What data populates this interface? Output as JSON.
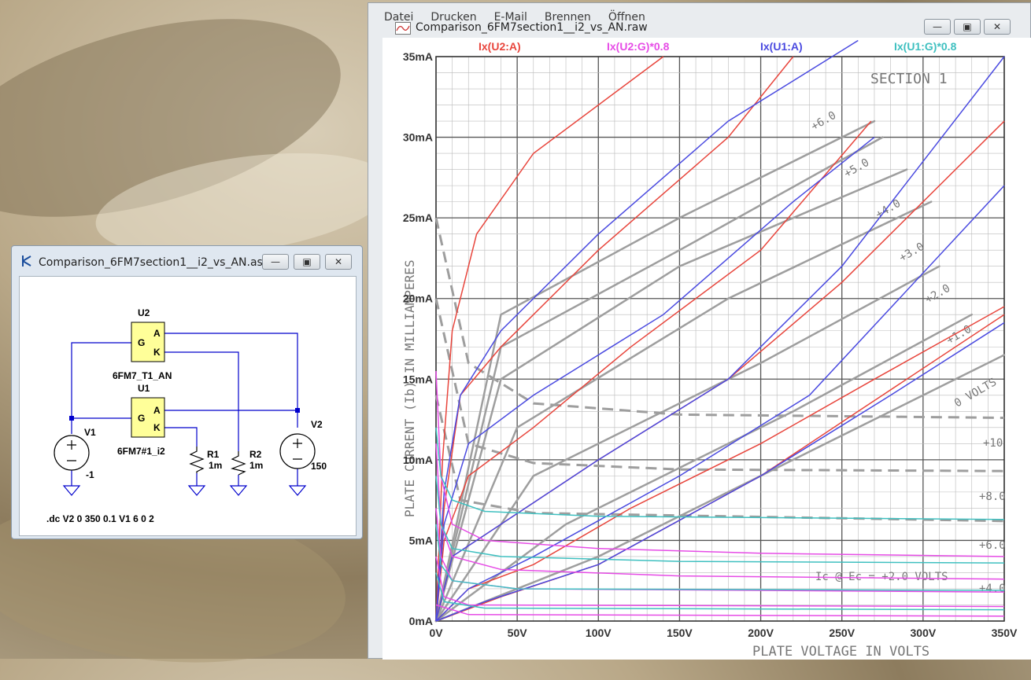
{
  "plot_window": {
    "title": "Comparison_6FM7section1__i2_vs_AN.raw",
    "menu": [
      "Datei",
      "Drucken",
      "E-Mail",
      "Brennen",
      "Öffnen"
    ]
  },
  "schematic_window": {
    "title": "Comparison_6FM7section1__i2_vs_AN.asc",
    "parts": {
      "u2_ref": "U2",
      "u2_model": "6FM7_T1_AN",
      "u1_ref": "U1",
      "u1_model": "6FM7#1_i2",
      "v1_ref": "V1",
      "v1_value": "-1",
      "v2_ref": "V2",
      "v2_value": "150",
      "r1_ref": "R1",
      "r1_value": "1m",
      "r2_ref": "R2",
      "r2_value": "1m",
      "pin_g": "G",
      "pin_a": "A",
      "pin_k": "K"
    },
    "directive": ".dc V2 0 350 0.1 V1 6 0 2"
  },
  "chart_data": {
    "type": "line",
    "x_ticks": [
      "0V",
      "50V",
      "100V",
      "150V",
      "200V",
      "250V",
      "300V",
      "350V"
    ],
    "y_ticks": [
      "0mA",
      "5mA",
      "10mA",
      "15mA",
      "20mA",
      "25mA",
      "30mA",
      "35mA"
    ],
    "xlim": [
      0,
      350
    ],
    "ylim": [
      0,
      35
    ],
    "grid": true,
    "legend": [
      "Ix(U2:A)",
      "Ix(U2:G)*0.8",
      "Ix(U1:A)",
      "Ix(U1:G)*0.8"
    ],
    "colors": {
      "u2a": "#e8453c",
      "u2g": "#e64ce6",
      "u1a": "#4a4ae0",
      "u1g": "#3fc0c0",
      "datasheet": "#9e9e9e"
    },
    "background_labels": [
      "SECTION 1",
      "PLATE CURRENT (Ib) IN MILLIAMPERES",
      "PLATE VOLTAGE IN VOLTS",
      "Ic @ Ec = +2.0 VOLTS",
      "+6.0",
      "+5.0",
      "+4.0",
      "+3.0",
      "+2.0",
      "+1.0",
      "0 VOLTS",
      "+10",
      "+8.0",
      "+6.0",
      "+4.0"
    ],
    "series": [
      {
        "name": "Ix(U2:A)",
        "color": "u2a",
        "curves": [
          [
            [
              0,
              0
            ],
            [
              4,
              10
            ],
            [
              10,
              18
            ],
            [
              25,
              24
            ],
            [
              60,
              29
            ],
            [
              140,
              35
            ]
          ],
          [
            [
              0,
              0
            ],
            [
              5,
              7
            ],
            [
              15,
              14
            ],
            [
              40,
              17
            ],
            [
              100,
              23
            ],
            [
              180,
              30
            ],
            [
              220,
              35
            ]
          ],
          [
            [
              0,
              0
            ],
            [
              5,
              5
            ],
            [
              20,
              9
            ],
            [
              60,
              12
            ],
            [
              120,
              17
            ],
            [
              200,
              23
            ],
            [
              268,
              31
            ]
          ],
          [
            [
              0,
              0
            ],
            [
              10,
              4
            ],
            [
              40,
              6
            ],
            [
              100,
              10
            ],
            [
              180,
              15
            ],
            [
              250,
              21
            ],
            [
              350,
              31
            ]
          ],
          [
            [
              0,
              0
            ],
            [
              20,
              2
            ],
            [
              60,
              3.5
            ],
            [
              120,
              7
            ],
            [
              200,
              11
            ],
            [
              270,
              15
            ],
            [
              350,
              19.5
            ]
          ],
          [
            [
              0,
              0
            ],
            [
              40,
              1.5
            ],
            [
              100,
              3.5
            ],
            [
              200,
              9
            ],
            [
              260,
              13
            ],
            [
              350,
              19
            ]
          ]
        ]
      },
      {
        "name": "Ix(U1:A)",
        "color": "u1a",
        "curves": [
          [
            [
              0,
              0
            ],
            [
              5,
              8
            ],
            [
              15,
              14
            ],
            [
              40,
              18
            ],
            [
              100,
              24
            ],
            [
              180,
              31
            ],
            [
              260,
              36
            ]
          ],
          [
            [
              0,
              0
            ],
            [
              5,
              6
            ],
            [
              20,
              11
            ],
            [
              60,
              14
            ],
            [
              140,
              19
            ],
            [
              220,
              26
            ],
            [
              270,
              30
            ]
          ],
          [
            [
              0,
              0
            ],
            [
              10,
              4
            ],
            [
              40,
              6
            ],
            [
              100,
              10
            ],
            [
              180,
              15
            ],
            [
              250,
              22
            ],
            [
              350,
              35
            ]
          ],
          [
            [
              0,
              0
            ],
            [
              20,
              2
            ],
            [
              60,
              4
            ],
            [
              150,
              9
            ],
            [
              230,
              14
            ],
            [
              350,
              27
            ]
          ],
          [
            [
              0,
              0
            ],
            [
              30,
              1.2
            ],
            [
              100,
              3.5
            ],
            [
              200,
              9
            ],
            [
              280,
              14
            ],
            [
              350,
              18.5
            ]
          ]
        ]
      },
      {
        "name": "Ix(U2:G)*0.8",
        "color": "u2g",
        "curves": [
          [
            [
              0,
              15.5
            ],
            [
              3,
              9
            ],
            [
              10,
              6
            ],
            [
              30,
              5
            ],
            [
              100,
              4.5
            ],
            [
              200,
              4.2
            ],
            [
              350,
              4
            ]
          ],
          [
            [
              0,
              11
            ],
            [
              3,
              6
            ],
            [
              10,
              4
            ],
            [
              40,
              3.2
            ],
            [
              150,
              2.8
            ],
            [
              350,
              2.6
            ]
          ],
          [
            [
              0,
              7
            ],
            [
              3,
              4
            ],
            [
              10,
              2.5
            ],
            [
              50,
              2
            ],
            [
              350,
              1.8
            ]
          ],
          [
            [
              0,
              4
            ],
            [
              5,
              1.5
            ],
            [
              20,
              1
            ],
            [
              350,
              0.9
            ]
          ],
          [
            [
              0,
              1
            ],
            [
              20,
              0.4
            ],
            [
              350,
              0.3
            ]
          ]
        ]
      },
      {
        "name": "Ix(U1:G)*0.8",
        "color": "u1g",
        "curves": [
          [
            [
              0,
              12
            ],
            [
              3,
              9
            ],
            [
              10,
              7.5
            ],
            [
              30,
              6.8
            ],
            [
              100,
              6.5
            ],
            [
              350,
              6.3
            ]
          ],
          [
            [
              0,
              9
            ],
            [
              3,
              6
            ],
            [
              10,
              4.5
            ],
            [
              40,
              4
            ],
            [
              150,
              3.7
            ],
            [
              350,
              3.6
            ]
          ],
          [
            [
              0,
              6
            ],
            [
              3,
              3.5
            ],
            [
              10,
              2.5
            ],
            [
              50,
              2
            ],
            [
              350,
              1.9
            ]
          ],
          [
            [
              0,
              3
            ],
            [
              5,
              1.2
            ],
            [
              30,
              0.8
            ],
            [
              350,
              0.7
            ]
          ]
        ]
      }
    ]
  }
}
